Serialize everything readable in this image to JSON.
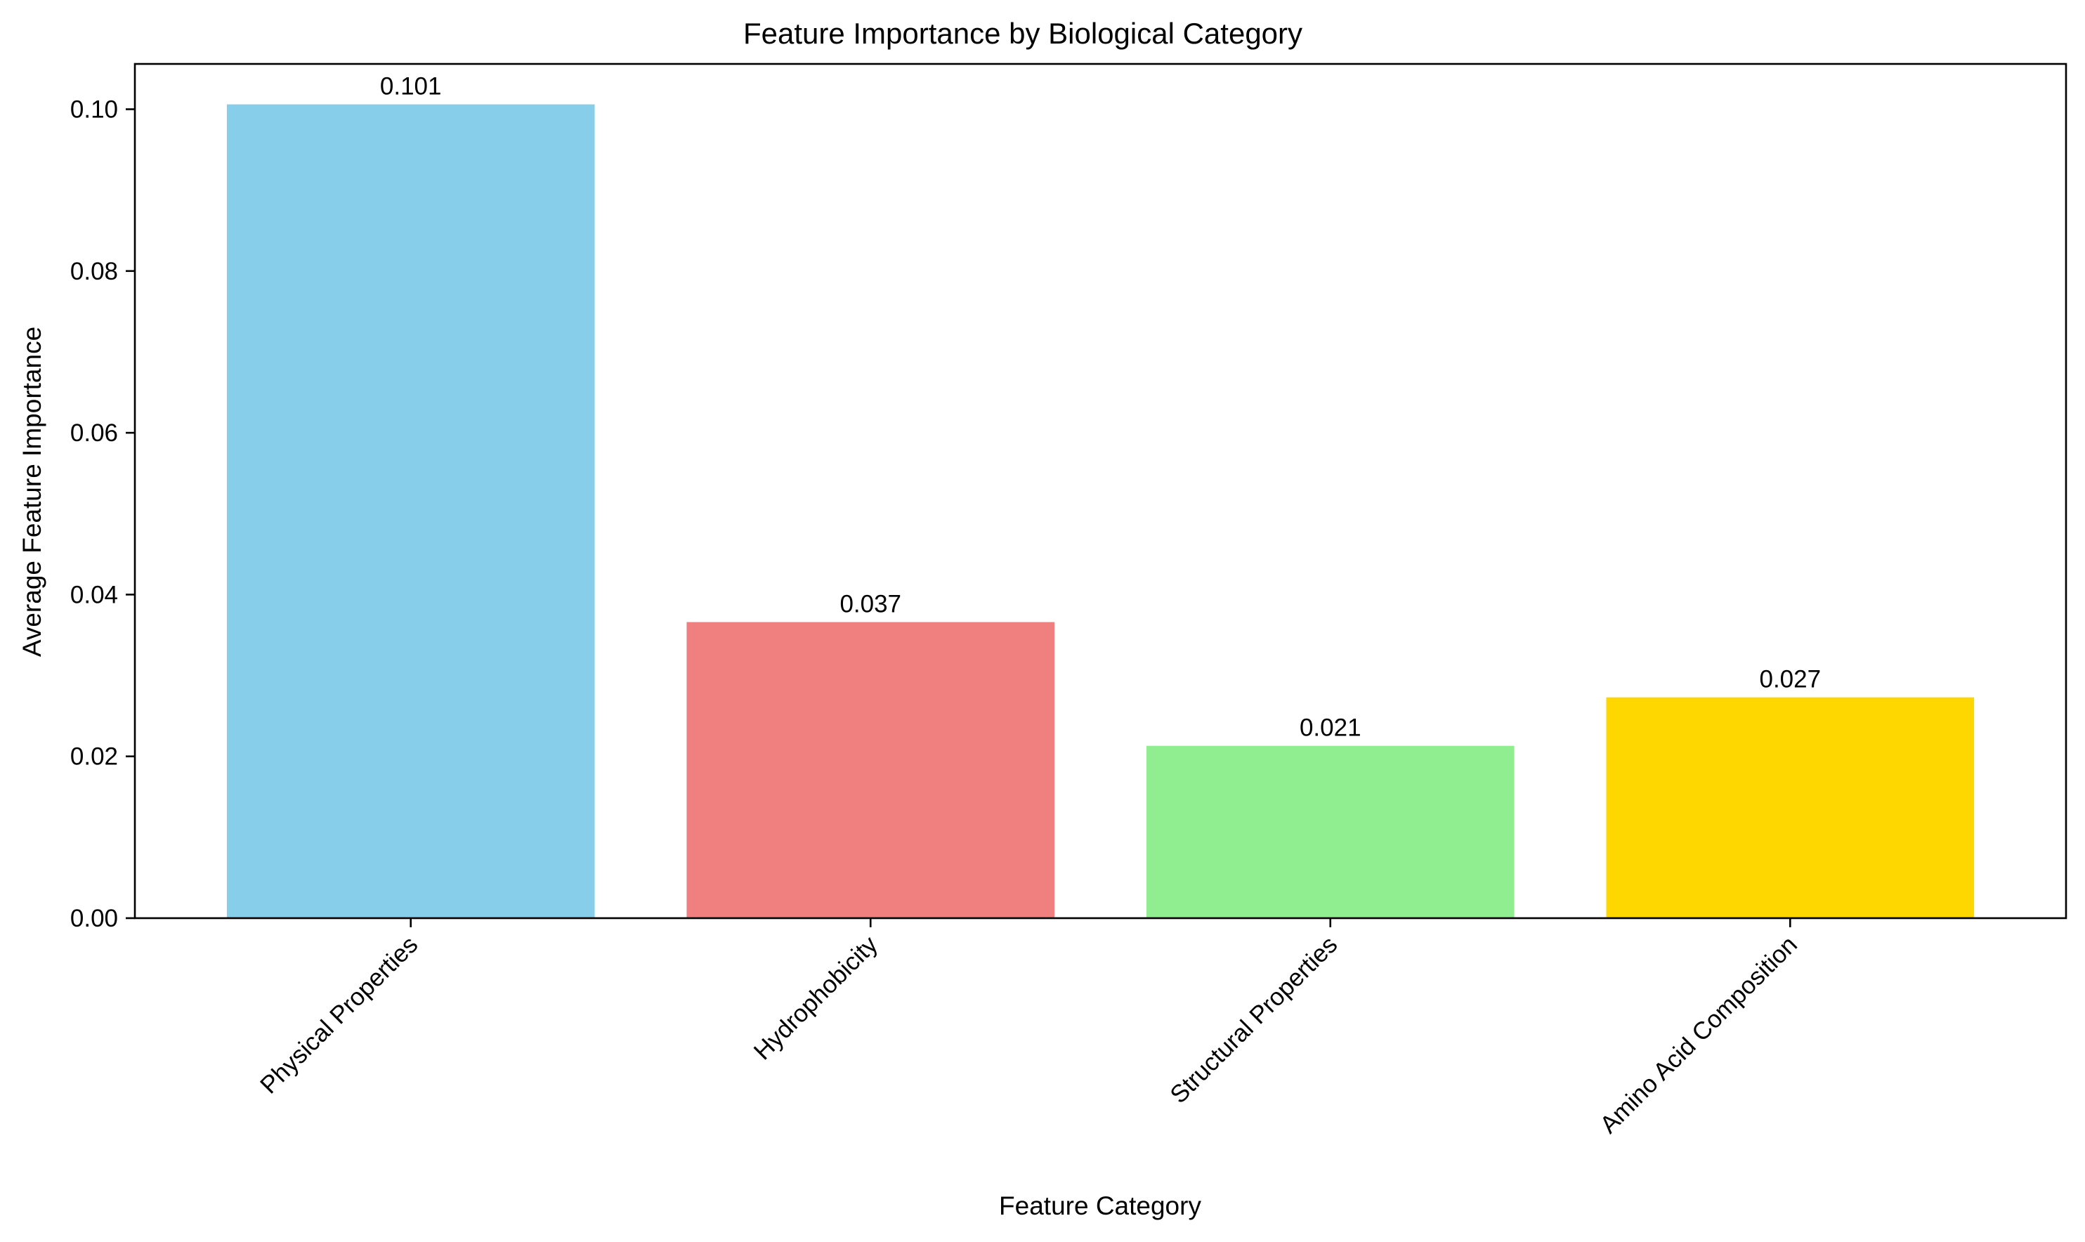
{
  "chart_data": {
    "type": "bar",
    "title": "Feature Importance by Biological Category",
    "xlabel": "Feature Category",
    "ylabel": "Average Feature Importance",
    "categories": [
      "Physical Properties",
      "Hydrophobicity",
      "Structural Properties",
      "Amino Acid Composition"
    ],
    "values": [
      0.1006,
      0.0366,
      0.0213,
      0.0273
    ],
    "data_labels": [
      "0.101",
      "0.037",
      "0.021",
      "0.027"
    ],
    "colors": [
      "#87CEEB",
      "#F08080",
      "#90EE90",
      "#FFD700"
    ],
    "ylim": [
      0,
      0.1056
    ],
    "yticks": [
      0.0,
      0.02,
      0.04,
      0.06,
      0.08,
      0.1
    ],
    "ytick_labels": [
      "0.00",
      "0.02",
      "0.04",
      "0.06",
      "0.08",
      "0.10"
    ],
    "xtick_rotation_deg": 45,
    "grid": false,
    "legend": "none"
  }
}
